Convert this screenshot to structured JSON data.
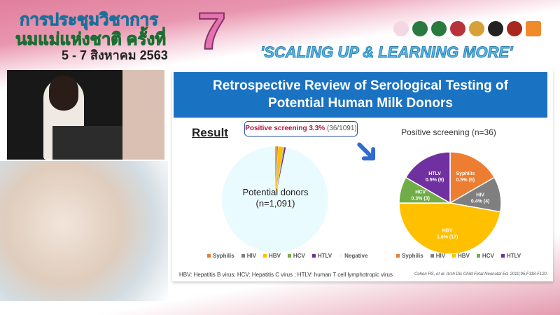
{
  "banner": {
    "line1": "การประชุมวิชาการ",
    "line2": "นมแม่แห่งชาติ ครั้งที่",
    "dates": "5 - 7 สิงหาคม 2563",
    "number": "7",
    "slogan": "'SCALING UP & LEARNING MORE'"
  },
  "slide": {
    "title_line1": "Retrospective Review of Serological Testing of",
    "title_line2": "Potential Human Milk Donors",
    "result_heading": "Result",
    "callout_bold": "Positive screening 3.3%",
    "callout_rest": "(36/1091)",
    "left_label1": "Potential donors",
    "left_label2": "(n=1,091)",
    "right_title": "Positive screening (n=36)",
    "footnote": "HBV: Hepatitis B virus; HCV: Hepatitis C virus ; HTLV: human T cell lymphotropic virus",
    "citation": "Cohen RS, et al. Arch Dis Child Fetal Neonatal Ed. 2010;95:F118-F120."
  },
  "chart_data": [
    {
      "type": "pie",
      "categories": [
        "Syphilis",
        "HIV",
        "HBV",
        "HCV",
        "HTLV",
        "Negative"
      ],
      "values": [
        6,
        4,
        17,
        3,
        6,
        1055
      ],
      "colors": [
        "#ed7d31",
        "#7f7f7f",
        "#ffc000",
        "#70ad47",
        "#7030a0",
        "#eafbff"
      ]
    },
    {
      "type": "pie",
      "title": "Positive screening (n=36)",
      "categories": [
        "Syphilis",
        "HIV",
        "HBV",
        "HCV",
        "HTLV"
      ],
      "values": [
        6,
        4,
        17,
        3,
        6
      ],
      "labels": [
        "0.5% (6)",
        "0.4% (4)",
        "1.6% (17)",
        "0.3% (3)",
        "0.5% (6)"
      ],
      "colors": [
        "#ed7d31",
        "#7f7f7f",
        "#ffc000",
        "#70ad47",
        "#7030a0"
      ]
    }
  ]
}
